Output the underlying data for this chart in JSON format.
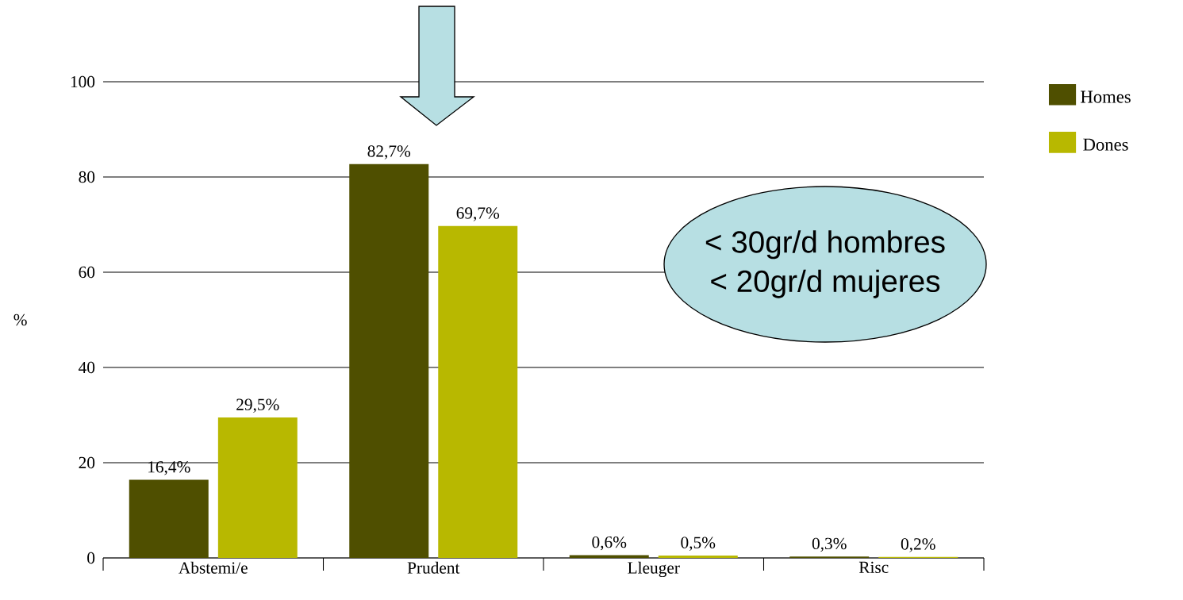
{
  "chart_data": {
    "type": "bar",
    "ylabel": "%",
    "categories": [
      "Abstemi/e",
      "Prudent",
      "Lleuger",
      "Risc"
    ],
    "series": [
      {
        "name": "Homes",
        "color": "#4f4f00",
        "values": [
          16.4,
          82.7,
          0.6,
          0.3
        ],
        "value_labels": [
          "16,4%",
          "82,7%",
          "0,6%",
          "0,3%"
        ]
      },
      {
        "name": "Dones",
        "color": "#b8b800",
        "values": [
          29.5,
          69.7,
          0.5,
          0.2
        ],
        "value_labels": [
          "29,5%",
          "69,7%",
          "0,5%",
          "0,2%"
        ]
      }
    ],
    "ylim": [
      0,
      100
    ],
    "yticks": [
      0,
      20,
      40,
      60,
      80,
      100
    ],
    "grid": "y",
    "legend": "top right",
    "annotations": [
      "< 30gr/d hombres",
      "< 20gr/d mujeres"
    ]
  }
}
